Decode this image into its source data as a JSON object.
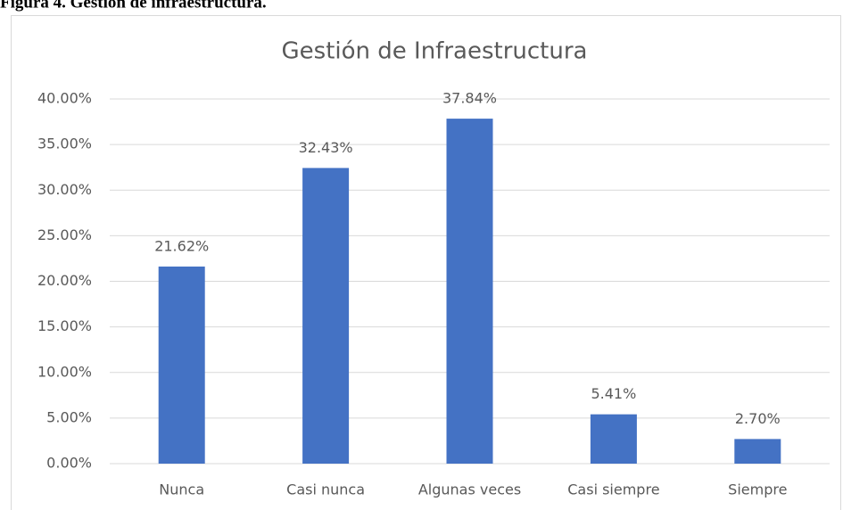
{
  "caption": "Figura 4. Gestión de infraestructura.",
  "chart_data": {
    "type": "bar",
    "title": "Gestión de Infraestructura",
    "categories": [
      "Nunca",
      "Casi nunca",
      "Algunas veces",
      "Casi siempre",
      "Siempre"
    ],
    "values": [
      21.62,
      32.43,
      37.84,
      5.41,
      2.7
    ],
    "value_labels": [
      "21.62%",
      "32.43%",
      "37.84%",
      "5.41%",
      "2.70%"
    ],
    "color": "#4472c4",
    "ylim": [
      0,
      40
    ],
    "yticks": [
      {
        "value": 0,
        "label": "0.00%"
      },
      {
        "value": 5,
        "label": "5.00%"
      },
      {
        "value": 10,
        "label": "10.00%"
      },
      {
        "value": 15,
        "label": "15.00%"
      },
      {
        "value": 20,
        "label": "20.00%"
      },
      {
        "value": 25,
        "label": "25.00%"
      },
      {
        "value": 30,
        "label": "30.00%"
      },
      {
        "value": 35,
        "label": "35.00%"
      },
      {
        "value": 40,
        "label": "40.00%"
      }
    ],
    "grid": true
  }
}
